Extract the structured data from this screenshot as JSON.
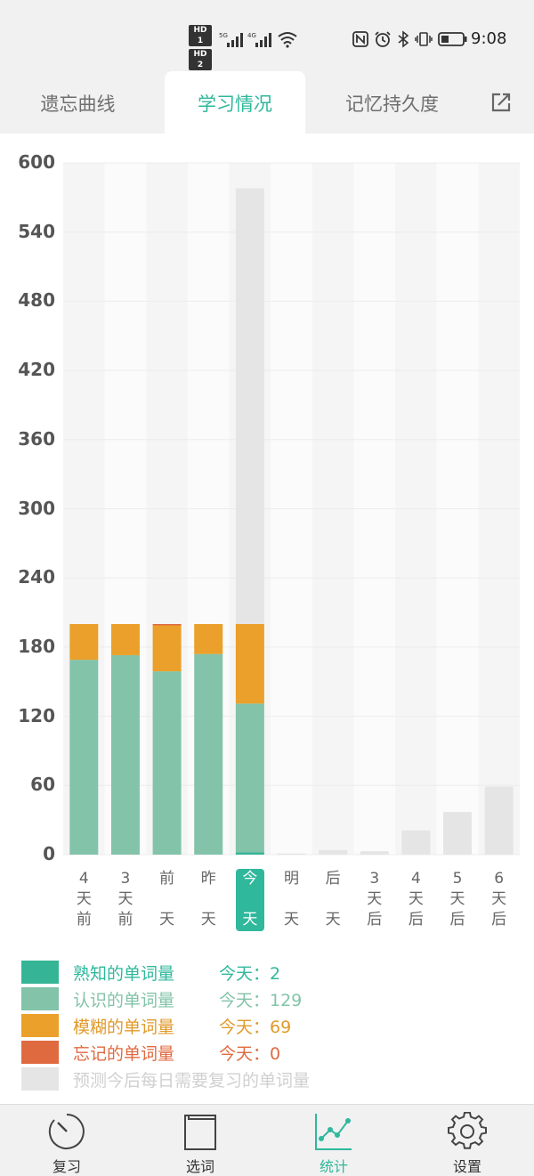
{
  "status_bar": {
    "hd1": "HD 1",
    "hd2": "HD 2",
    "net1": "5G",
    "net2": "4G",
    "time": "9:08",
    "icons": [
      "nfc-icon",
      "alarm-icon",
      "bluetooth-icon",
      "vibrate-icon",
      "battery-icon"
    ]
  },
  "tabs": [
    {
      "label": "遗忘曲线",
      "active": false
    },
    {
      "label": "学习情况",
      "active": true
    },
    {
      "label": "记忆持久度",
      "active": false
    }
  ],
  "share_icon": "share-icon",
  "chart_data": {
    "type": "bar",
    "stacked": true,
    "ylim": [
      0,
      600
    ],
    "yticks": [
      "600",
      "540",
      "480",
      "420",
      "360",
      "300",
      "240",
      "180",
      "120",
      "60",
      "0"
    ],
    "categories": [
      [
        "4",
        "天",
        "前"
      ],
      [
        "3",
        "天",
        "前"
      ],
      [
        "前",
        "",
        "天"
      ],
      [
        "昨",
        "",
        "天"
      ],
      [
        "今",
        "",
        "天"
      ],
      [
        "明",
        "",
        "天"
      ],
      [
        "后",
        "",
        "天"
      ],
      [
        "3",
        "天",
        "后"
      ],
      [
        "4",
        "天",
        "后"
      ],
      [
        "5",
        "天",
        "后"
      ],
      [
        "6",
        "天",
        "后"
      ]
    ],
    "today_index": 4,
    "series": [
      {
        "name": "熟知的单词量",
        "color": "#35b595",
        "values": [
          0,
          0,
          0,
          0,
          2,
          0,
          0,
          0,
          0,
          0,
          0
        ]
      },
      {
        "name": "认识的单词量",
        "color": "#82c3a9",
        "values": [
          169,
          173,
          159,
          174,
          129,
          0,
          0,
          0,
          0,
          0,
          0
        ]
      },
      {
        "name": "模糊的单词量",
        "color": "#eaa02a",
        "values": [
          31,
          27,
          40,
          26,
          69,
          0,
          0,
          0,
          0,
          0,
          0
        ]
      },
      {
        "name": "忘记的单词量",
        "color": "#e06a40",
        "values": [
          0,
          0,
          1,
          0,
          0,
          0,
          0,
          0,
          0,
          0,
          0
        ]
      },
      {
        "name": "预测今后每日需要复习的单词量",
        "color": "#e5e5e5",
        "values": [
          0,
          0,
          0,
          0,
          378,
          1,
          4,
          3,
          21,
          37,
          59
        ]
      }
    ],
    "grid": true
  },
  "legend": [
    {
      "label": "熟知的单词量",
      "value": "今天：2",
      "color": "#35b595",
      "text_color": "#2fb89c"
    },
    {
      "label": "认识的单词量",
      "value": "今天：129",
      "color": "#82c3a9",
      "text_color": "#82c3a9"
    },
    {
      "label": "模糊的单词量",
      "value": "今天：69",
      "color": "#eaa02a",
      "text_color": "#e09a2a"
    },
    {
      "label": "忘记的单词量",
      "value": "今天：0",
      "color": "#e06a40",
      "text_color": "#e06a40"
    },
    {
      "label": "预测今后每日需要复习的单词量",
      "value": "",
      "color": "#e5e5e5",
      "text_color": "#d0d0d0"
    }
  ],
  "bottom_nav": [
    {
      "label": "复习",
      "icon": "gauge-icon",
      "active": false
    },
    {
      "label": "选词",
      "icon": "book-icon",
      "active": false
    },
    {
      "label": "统计",
      "icon": "line-chart-icon",
      "active": true
    },
    {
      "label": "设置",
      "icon": "gear-icon",
      "active": false
    }
  ]
}
